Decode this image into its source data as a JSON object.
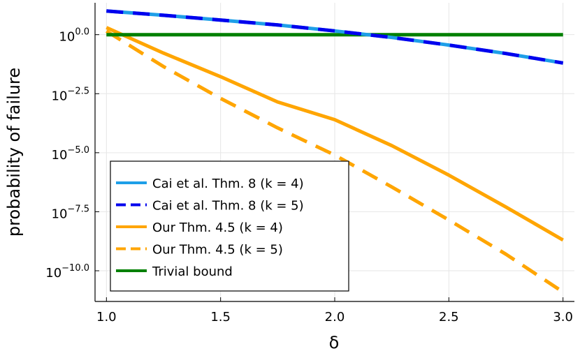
{
  "chart_data": {
    "type": "line",
    "title": "",
    "xlabel": "δ",
    "ylabel": "probability of failure",
    "yscale": "log10",
    "xlim": [
      0.95,
      3.05
    ],
    "ylim_log10": [
      -11.3,
      1.35
    ],
    "grid": true,
    "legend_position": "bottom-left",
    "x_ticks": [
      1.0,
      1.5,
      2.0,
      2.5,
      3.0
    ],
    "x_tick_labels": [
      "1.0",
      "1.5",
      "2.0",
      "2.5",
      "3.0"
    ],
    "y_ticks_log10": [
      0.0,
      -2.5,
      -5.0,
      -7.5,
      -10.0
    ],
    "y_tick_labels": [
      {
        "base": "10",
        "exp": "0.0"
      },
      {
        "base": "10",
        "exp": "−2.5"
      },
      {
        "base": "10",
        "exp": "−5.0"
      },
      {
        "base": "10",
        "exp": "−7.5"
      },
      {
        "base": "10",
        "exp": "−10.0"
      }
    ],
    "series": [
      {
        "name": "Cai et al. Thm. 8 (k = 4)",
        "color": "#1e9fe8",
        "style": "solid",
        "x": [
          1.0,
          1.25,
          1.5,
          1.75,
          2.0,
          2.25,
          2.5,
          2.75,
          3.0
        ],
        "log10_y": [
          1.0,
          0.82,
          0.62,
          0.41,
          0.16,
          -0.12,
          -0.44,
          -0.8,
          -1.2
        ]
      },
      {
        "name": "Cai et al. Thm. 8 (k = 5)",
        "color": "#0000ee",
        "style": "dashed",
        "x": [
          1.0,
          1.25,
          1.5,
          1.75,
          2.0,
          2.25,
          2.5,
          2.75,
          3.0
        ],
        "log10_y": [
          1.0,
          0.82,
          0.62,
          0.41,
          0.16,
          -0.12,
          -0.44,
          -0.8,
          -1.2
        ]
      },
      {
        "name": "Our Thm. 4.5 (k = 4)",
        "color": "#ffa500",
        "style": "solid",
        "x": [
          1.0,
          1.25,
          1.5,
          1.75,
          2.0,
          2.25,
          2.5,
          2.75,
          3.0
        ],
        "log10_y": [
          0.3,
          -0.78,
          -1.78,
          -2.85,
          -3.6,
          -4.7,
          -5.95,
          -7.3,
          -8.7
        ]
      },
      {
        "name": "Our Thm. 4.5 (k = 5)",
        "color": "#ffa500",
        "style": "dashed",
        "x": [
          1.0,
          1.25,
          1.5,
          1.75,
          2.0,
          2.25,
          2.5,
          2.75,
          3.0
        ],
        "log10_y": [
          0.15,
          -1.35,
          -2.7,
          -3.95,
          -5.1,
          -6.45,
          -7.85,
          -9.3,
          -10.9
        ]
      },
      {
        "name": "Trivial bound",
        "color": "#008000",
        "style": "solid",
        "x": [
          1.0,
          3.0
        ],
        "log10_y": [
          0.0,
          0.0
        ]
      }
    ]
  }
}
